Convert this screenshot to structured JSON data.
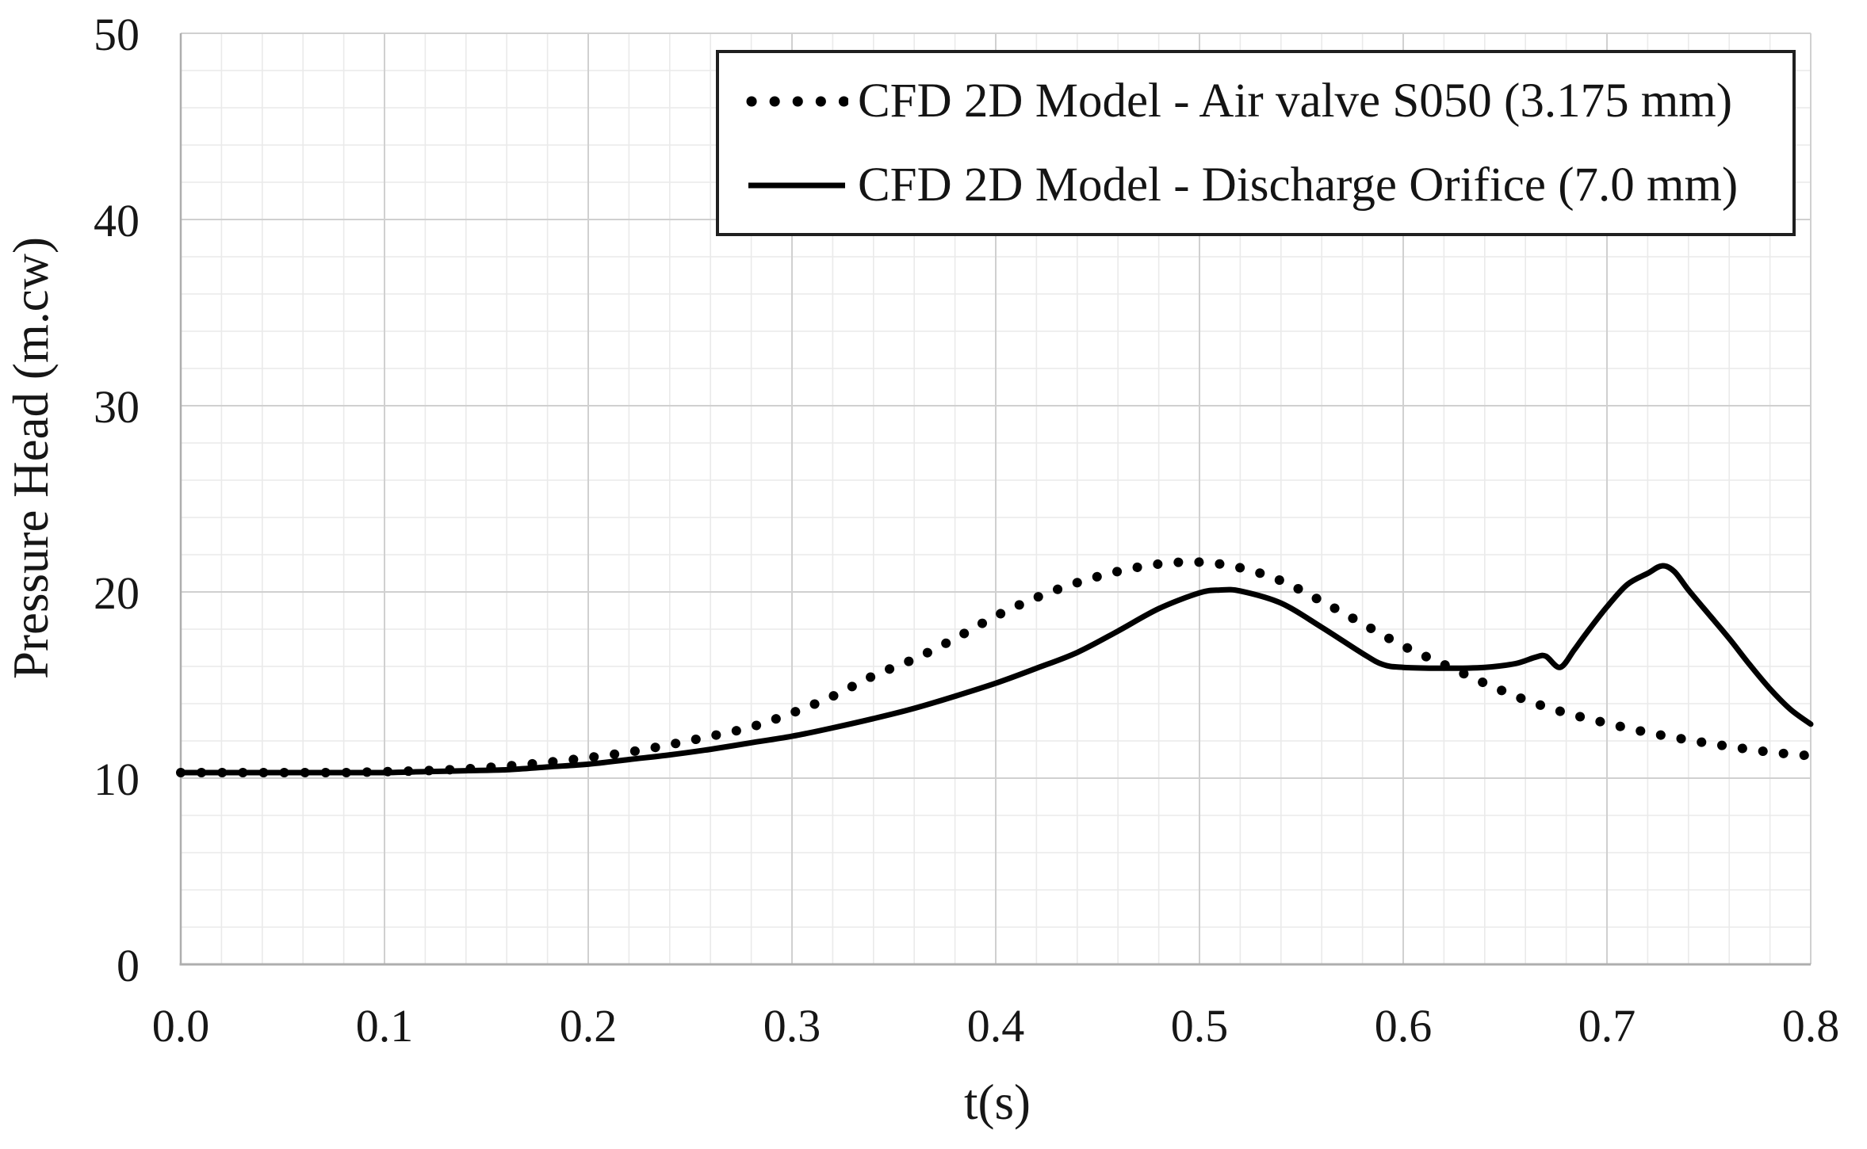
{
  "chart_data": {
    "type": "line",
    "title": "",
    "xlabel": "t(s)",
    "ylabel": "Pressure Head (m.cw)",
    "xlim": [
      0.0,
      0.8
    ],
    "ylim": [
      0,
      50
    ],
    "x_ticks": [
      "0.0",
      "0.1",
      "0.2",
      "0.3",
      "0.4",
      "0.5",
      "0.6",
      "0.7",
      "0.8"
    ],
    "y_ticks": [
      "0",
      "10",
      "20",
      "30",
      "40",
      "50"
    ],
    "x_major_step": 0.1,
    "y_major_step": 10,
    "x_minor_step": 0.02,
    "y_minor_step": 2,
    "grid": "major+minor",
    "legend_position": "inside-top-right",
    "series": [
      {
        "name": "CFD 2D Model - Air valve S050 (3.175 mm)",
        "style": "dotted",
        "color": "#000000",
        "points": [
          [
            0.0,
            10.3
          ],
          [
            0.02,
            10.3
          ],
          [
            0.04,
            10.3
          ],
          [
            0.06,
            10.3
          ],
          [
            0.08,
            10.3
          ],
          [
            0.1,
            10.35
          ],
          [
            0.12,
            10.4
          ],
          [
            0.14,
            10.5
          ],
          [
            0.16,
            10.65
          ],
          [
            0.18,
            10.85
          ],
          [
            0.2,
            11.1
          ],
          [
            0.22,
            11.4
          ],
          [
            0.24,
            11.8
          ],
          [
            0.26,
            12.25
          ],
          [
            0.28,
            12.75
          ],
          [
            0.3,
            13.5
          ],
          [
            0.32,
            14.4
          ],
          [
            0.34,
            15.5
          ],
          [
            0.36,
            16.4
          ],
          [
            0.38,
            17.5
          ],
          [
            0.4,
            18.7
          ],
          [
            0.42,
            19.7
          ],
          [
            0.44,
            20.5
          ],
          [
            0.46,
            21.1
          ],
          [
            0.48,
            21.5
          ],
          [
            0.5,
            21.6
          ],
          [
            0.52,
            21.3
          ],
          [
            0.54,
            20.6
          ],
          [
            0.56,
            19.5
          ],
          [
            0.58,
            18.3
          ],
          [
            0.6,
            17.1
          ],
          [
            0.62,
            16.1
          ],
          [
            0.64,
            15.1
          ],
          [
            0.66,
            14.2
          ],
          [
            0.68,
            13.5
          ],
          [
            0.7,
            12.95
          ],
          [
            0.72,
            12.45
          ],
          [
            0.74,
            12.05
          ],
          [
            0.76,
            11.7
          ],
          [
            0.78,
            11.4
          ],
          [
            0.8,
            11.2
          ]
        ]
      },
      {
        "name": "CFD 2D Model - Discharge Orifice (7.0 mm)",
        "style": "solid",
        "color": "#000000",
        "points": [
          [
            0.0,
            10.3
          ],
          [
            0.02,
            10.3
          ],
          [
            0.04,
            10.3
          ],
          [
            0.06,
            10.3
          ],
          [
            0.08,
            10.3
          ],
          [
            0.1,
            10.3
          ],
          [
            0.12,
            10.35
          ],
          [
            0.14,
            10.4
          ],
          [
            0.16,
            10.45
          ],
          [
            0.18,
            10.6
          ],
          [
            0.2,
            10.75
          ],
          [
            0.22,
            11.0
          ],
          [
            0.24,
            11.25
          ],
          [
            0.26,
            11.55
          ],
          [
            0.28,
            11.9
          ],
          [
            0.3,
            12.25
          ],
          [
            0.32,
            12.7
          ],
          [
            0.34,
            13.2
          ],
          [
            0.36,
            13.75
          ],
          [
            0.38,
            14.4
          ],
          [
            0.4,
            15.1
          ],
          [
            0.42,
            15.9
          ],
          [
            0.44,
            16.75
          ],
          [
            0.46,
            17.9
          ],
          [
            0.48,
            19.1
          ],
          [
            0.5,
            19.95
          ],
          [
            0.51,
            20.1
          ],
          [
            0.52,
            20.05
          ],
          [
            0.54,
            19.4
          ],
          [
            0.56,
            18.1
          ],
          [
            0.58,
            16.7
          ],
          [
            0.59,
            16.1
          ],
          [
            0.6,
            15.95
          ],
          [
            0.62,
            15.9
          ],
          [
            0.64,
            15.95
          ],
          [
            0.655,
            16.15
          ],
          [
            0.665,
            16.5
          ],
          [
            0.67,
            16.55
          ],
          [
            0.677,
            15.95
          ],
          [
            0.684,
            16.9
          ],
          [
            0.69,
            17.8
          ],
          [
            0.7,
            19.2
          ],
          [
            0.71,
            20.4
          ],
          [
            0.72,
            21.0
          ],
          [
            0.727,
            21.4
          ],
          [
            0.733,
            21.1
          ],
          [
            0.74,
            20.1
          ],
          [
            0.75,
            18.8
          ],
          [
            0.76,
            17.5
          ],
          [
            0.77,
            16.1
          ],
          [
            0.78,
            14.8
          ],
          [
            0.79,
            13.7
          ],
          [
            0.8,
            12.9
          ]
        ]
      }
    ]
  },
  "colors": {
    "curve": "#000000",
    "major_grid": "#d0d0d0",
    "minor_grid": "#eaeaea",
    "axis_line": "#aeaeae",
    "legend_border": "#1f1f1f",
    "text": "#161616",
    "background": "#ffffff"
  }
}
